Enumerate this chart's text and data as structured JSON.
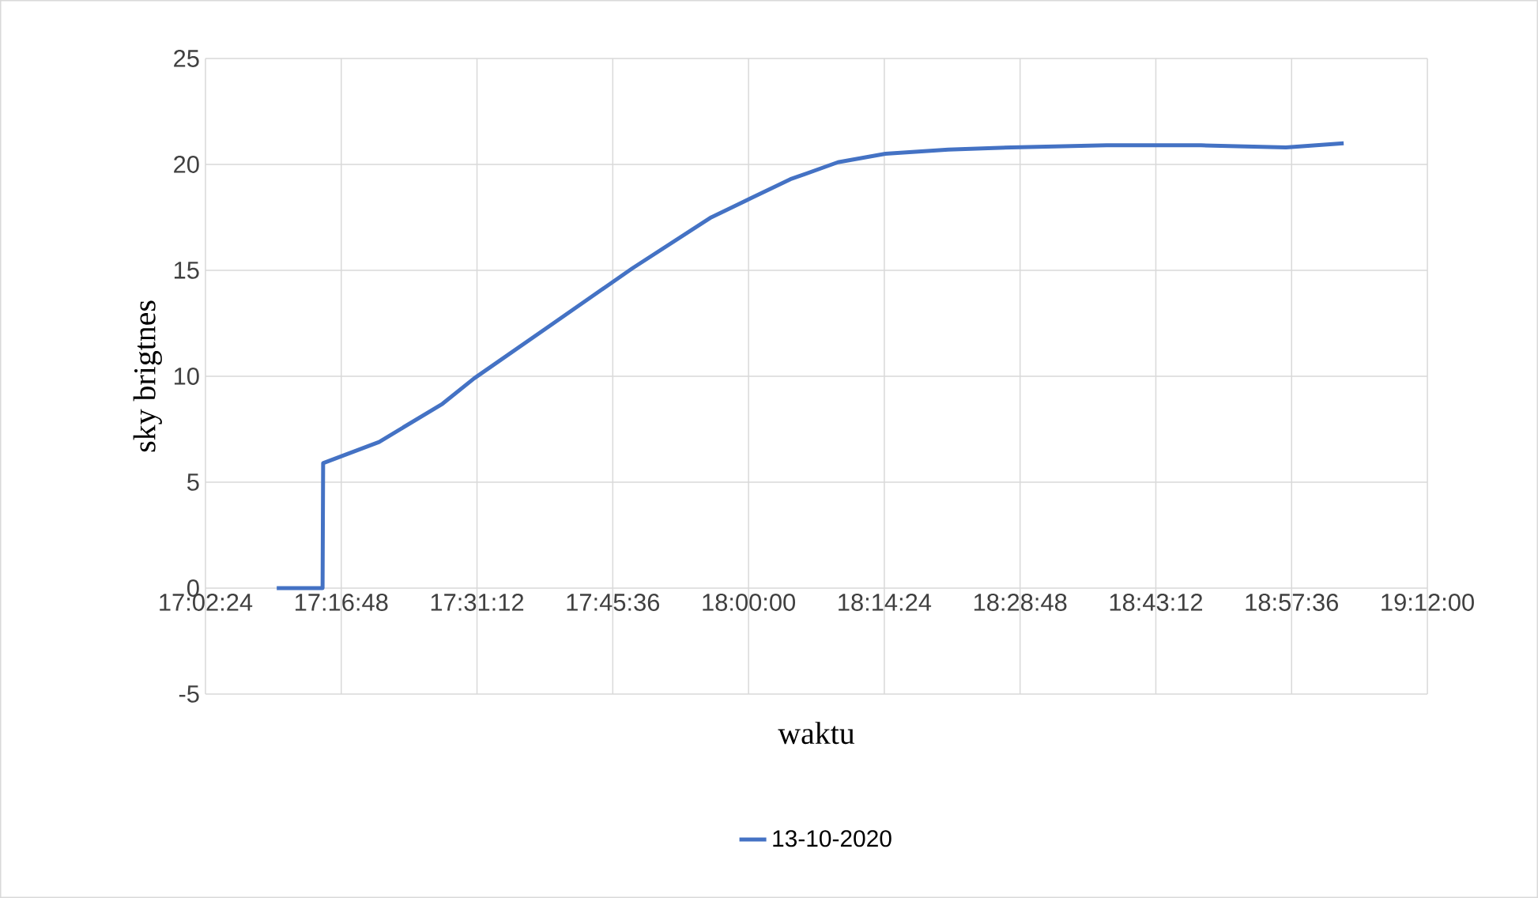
{
  "chart_data": {
    "type": "line",
    "xlabel": "waktu",
    "ylabel": "sky brigtnes",
    "xlim": [
      17.04,
      19.2
    ],
    "ylim": [
      -5,
      25
    ],
    "xticks": [
      {
        "value": 17.04,
        "label": "17:02:24"
      },
      {
        "value": 17.28,
        "label": "17:16:48"
      },
      {
        "value": 17.52,
        "label": "17:31:12"
      },
      {
        "value": 17.76,
        "label": "17:45:36"
      },
      {
        "value": 18.0,
        "label": "18:00:00"
      },
      {
        "value": 18.24,
        "label": "18:14:24"
      },
      {
        "value": 18.48,
        "label": "18:28:48"
      },
      {
        "value": 18.72,
        "label": "18:43:12"
      },
      {
        "value": 18.96,
        "label": "18:57:36"
      },
      {
        "value": 19.2,
        "label": "19:12:00"
      }
    ],
    "yticks": [
      -5,
      0,
      5,
      10,
      15,
      20,
      25
    ],
    "grid": true,
    "legend": "bottom",
    "marker": "none",
    "line_style": "solid",
    "series": [
      {
        "name": "13-10-2020",
        "color": "#4472c4",
        "x": [
          17.166,
          17.247,
          17.248,
          17.347,
          17.459,
          17.515,
          17.655,
          17.795,
          17.934,
          18.004,
          18.074,
          18.158,
          18.242,
          18.353,
          18.465,
          18.633,
          18.8,
          18.95,
          19.052
        ],
        "values": [
          0,
          0,
          5.9,
          6.9,
          8.7,
          9.9,
          12.5,
          15.1,
          17.5,
          18.4,
          19.3,
          20.1,
          20.5,
          20.7,
          20.8,
          20.9,
          20.9,
          20.8,
          21.0
        ]
      }
    ]
  }
}
